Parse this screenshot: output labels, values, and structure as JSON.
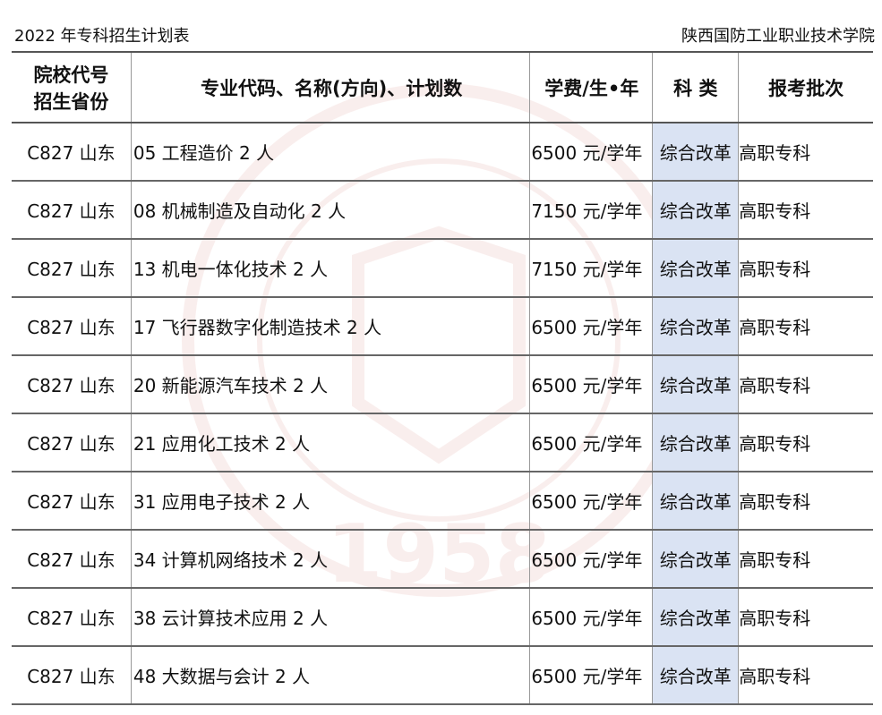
{
  "header": {
    "title": "2022 年专科招生计划表",
    "school": "陕西国防工业职业技术学院"
  },
  "table": {
    "columns": [
      "院校代号\n招生省份",
      "专业代码、名称(方向)、计划数",
      "学费/生•年",
      "科 类",
      "报考批次"
    ],
    "col0_line1": "院校代号",
    "col0_line2": "招生省份",
    "rows": [
      [
        "C827 山东",
        "05 工程造价 2 人",
        "6500 元/学年",
        "综合改革",
        "高职专科"
      ],
      [
        "C827 山东",
        "08 机械制造及自动化 2 人",
        "7150 元/学年",
        "综合改革",
        "高职专科"
      ],
      [
        "C827 山东",
        "13 机电一体化技术 2 人",
        "7150 元/学年",
        "综合改革",
        "高职专科"
      ],
      [
        "C827 山东",
        "17 飞行器数字化制造技术 2 人",
        "6500 元/学年",
        "综合改革",
        "高职专科"
      ],
      [
        "C827 山东",
        "20 新能源汽车技术 2 人",
        "6500 元/学年",
        "综合改革",
        "高职专科"
      ],
      [
        "C827 山东",
        "21 应用化工技术 2 人",
        "6500 元/学年",
        "综合改革",
        "高职专科"
      ],
      [
        "C827 山东",
        "31 应用电子技术 2 人",
        "6500 元/学年",
        "综合改革",
        "高职专科"
      ],
      [
        "C827 山东",
        "34 计算机网络技术 2 人",
        "6500 元/学年",
        "综合改革",
        "高职专科"
      ],
      [
        "C827 山东",
        "38 云计算技术应用 2 人",
        "6500 元/学年",
        "综合改革",
        "高职专科"
      ],
      [
        "C827 山东",
        "48 大数据与会计 2 人",
        "6500 元/学年",
        "综合改革",
        "高职专科"
      ]
    ]
  },
  "watermark": {
    "text": "1958",
    "color": "#c0392b"
  },
  "colors": {
    "category_bg": "#dae3f3"
  }
}
